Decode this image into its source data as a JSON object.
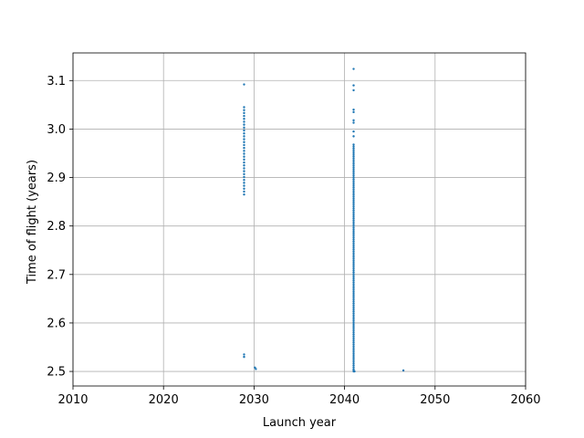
{
  "chart_data": {
    "type": "scatter",
    "title": "",
    "xlabel": "Launch year",
    "ylabel": "Time of flight (years)",
    "xlim": [
      2010,
      2060
    ],
    "ylim": [
      2.47,
      3.157
    ],
    "grid": true,
    "x_ticks": [
      2010,
      2020,
      2030,
      2040,
      2050,
      2060
    ],
    "x_tick_labels": [
      "2010",
      "2020",
      "2030",
      "2040",
      "2050",
      "2060"
    ],
    "y_ticks": [
      2.5,
      2.6,
      2.7,
      2.8,
      2.9,
      3.0,
      3.1
    ],
    "y_tick_labels": [
      "2.5",
      "2.6",
      "2.7",
      "2.8",
      "2.9",
      "3.0",
      "3.1"
    ],
    "marker_color": "#1f77b4",
    "clusters": [
      {
        "x": 2028.9,
        "y_min": 2.865,
        "y_max": 3.05,
        "step": 0.006
      },
      {
        "x": 2041.0,
        "y_min": 2.5,
        "y_max": 2.97,
        "step": 0.004
      }
    ],
    "points": [
      {
        "x": 2028.9,
        "y": 3.092
      },
      {
        "x": 2028.9,
        "y": 2.535
      },
      {
        "x": 2028.9,
        "y": 2.53
      },
      {
        "x": 2030.1,
        "y": 2.508
      },
      {
        "x": 2030.2,
        "y": 2.505
      },
      {
        "x": 2041.0,
        "y": 3.124
      },
      {
        "x": 2041.0,
        "y": 3.09
      },
      {
        "x": 2041.0,
        "y": 3.08
      },
      {
        "x": 2041.0,
        "y": 3.04
      },
      {
        "x": 2041.0,
        "y": 3.035
      },
      {
        "x": 2041.0,
        "y": 3.018
      },
      {
        "x": 2041.0,
        "y": 3.013
      },
      {
        "x": 2041.0,
        "y": 2.995
      },
      {
        "x": 2041.0,
        "y": 2.985
      },
      {
        "x": 2041.0,
        "y": 2.503
      },
      {
        "x": 2041.1,
        "y": 2.5
      },
      {
        "x": 2046.5,
        "y": 2.502
      }
    ]
  }
}
